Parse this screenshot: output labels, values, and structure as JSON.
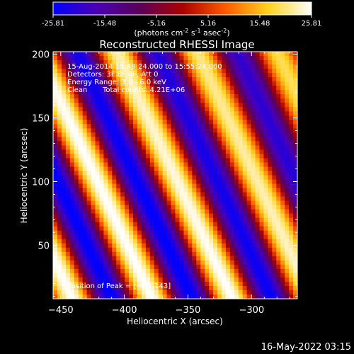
{
  "colorbar": {
    "ticks": [
      "-25.81",
      "-15.48",
      "-5.16",
      "5.16",
      "15.48",
      "25.81"
    ],
    "unit_parts": [
      "(photons cm",
      "-2",
      " s",
      "-1",
      " asec",
      "-2",
      ")"
    ],
    "colors": [
      "#0000ff",
      "#4b00b4",
      "#5a005a",
      "#aa0000",
      "#ff5a00",
      "#ffd21e",
      "#ffffff"
    ]
  },
  "chart_data": {
    "type": "heatmap",
    "title": "Reconstructed RHESSI Image",
    "xlabel": "Heliocentric X (arcsec)",
    "ylabel": "Heliocentric Y (arcsec)",
    "xlim": [
      -456,
      -264
    ],
    "ylim": [
      8,
      202
    ],
    "xticks": [
      -450,
      -400,
      -350,
      -300
    ],
    "yticks": [
      50,
      100,
      150,
      200
    ],
    "color_range": [
      -25.81,
      25.81
    ],
    "pattern": {
      "wave_direction_deg": 25,
      "wavelength_arcsec": 57,
      "phase_zero": [
        -441,
        143
      ],
      "amplitude_envelope": "decreases toward upper-right"
    },
    "peak": [
      -441,
      143
    ],
    "annotations": {
      "time": "15-Aug-2014 15:49:24.000 to 15:55:24.000",
      "detectors": "Detectors: 3F 6F 9F, Att 0",
      "energy": "Energy Range: 3.0 - 6.0 keV",
      "method": "Clean",
      "counts": "Total counts: 4.21E+06",
      "peak_label": "Position of Peak = [-441,143]"
    }
  },
  "footer": {
    "date": "16-May-2022 03:15"
  }
}
